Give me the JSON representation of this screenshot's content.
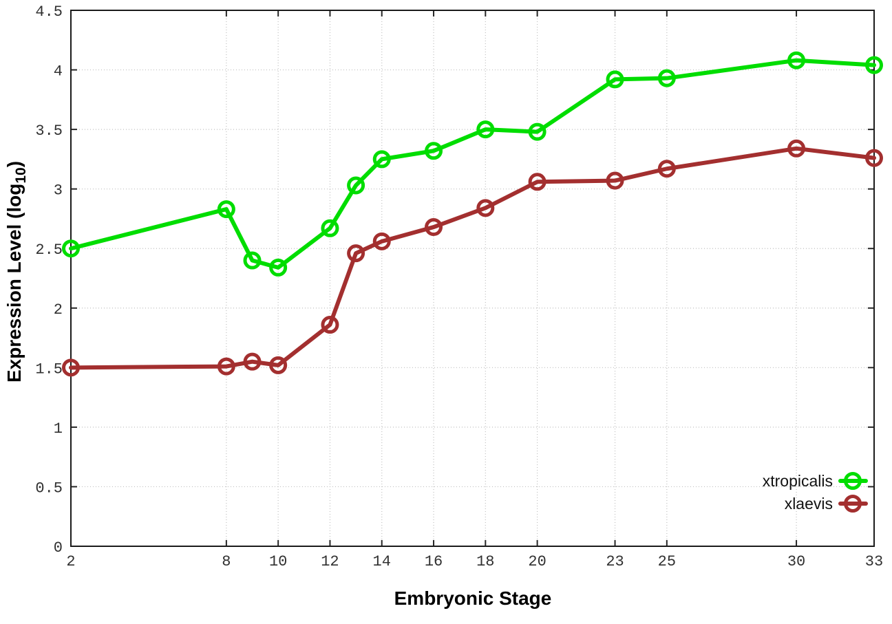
{
  "chart_data": {
    "type": "line",
    "xlabel": "Embryonic Stage",
    "ylabel": "Expression Level (log10)",
    "ylabel_parts": {
      "main": "Expression Level (log",
      "sub": "10",
      "close": ")"
    },
    "x": [
      2,
      8,
      9,
      10,
      12,
      13,
      14,
      16,
      18,
      20,
      23,
      25,
      30,
      33
    ],
    "series": [
      {
        "name": "xtropicalis",
        "color": "#00dd00",
        "values": [
          2.5,
          2.83,
          2.4,
          2.34,
          2.67,
          3.03,
          3.25,
          3.32,
          3.5,
          3.48,
          3.92,
          3.93,
          4.08,
          4.04
        ]
      },
      {
        "name": "xlaevis",
        "color": "#a32f2f",
        "values": [
          1.5,
          1.51,
          1.55,
          1.52,
          1.86,
          2.46,
          2.56,
          2.68,
          2.84,
          3.06,
          3.07,
          3.17,
          3.34,
          3.26
        ]
      }
    ],
    "xlim": [
      2,
      33
    ],
    "ylim": [
      0,
      4.5
    ],
    "x_ticks": [
      2,
      8,
      10,
      12,
      14,
      16,
      18,
      20,
      23,
      25,
      30,
      33
    ],
    "y_ticks": [
      0,
      0.5,
      1,
      1.5,
      2,
      2.5,
      3,
      3.5,
      4,
      4.5
    ],
    "y_tick_labels": [
      "0",
      "0.5",
      "1",
      "1.5",
      "2",
      "2.5",
      "3",
      "3.5",
      "4",
      "4.5"
    ],
    "grid": true,
    "legend_position": "bottom-right",
    "marker": "open-circle"
  }
}
